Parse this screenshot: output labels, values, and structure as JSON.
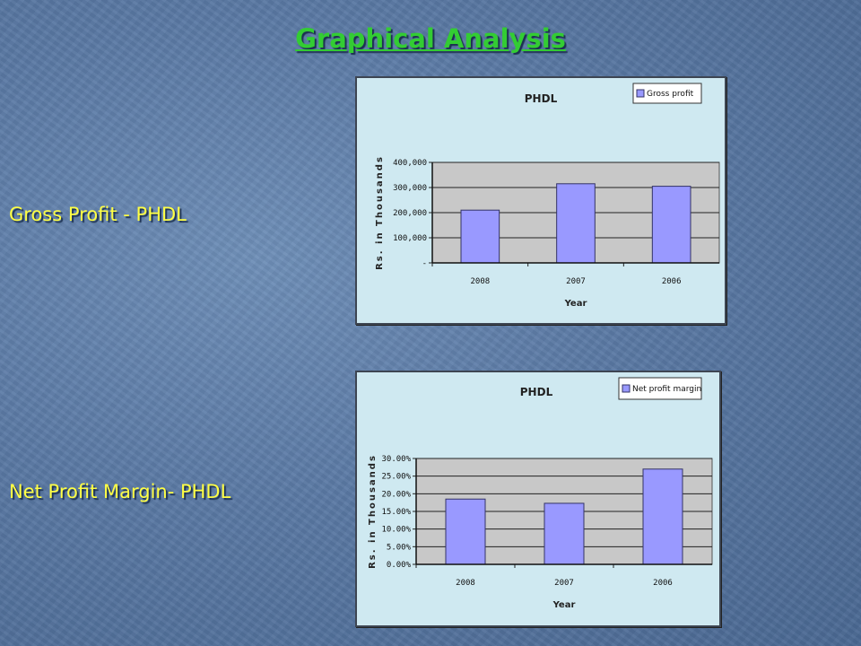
{
  "slide": {
    "title": "Graphical Analysis",
    "label_gross": "Gross Profit - PHDL",
    "label_net": "Net Profit Margin- PHDL"
  },
  "colors": {
    "title": "#33cc33",
    "label": "#ffff44",
    "bar": "#9999ff",
    "chart_bg": "#cfe9f1",
    "plot_bg": "#c8c8c8"
  },
  "chart_data": [
    {
      "type": "bar",
      "title": "PHDL",
      "categories": [
        "2008",
        "2007",
        "2006"
      ],
      "series": [
        {
          "name": "Gross profit",
          "values": [
            210000,
            315000,
            305000
          ]
        }
      ],
      "xlabel": "Year",
      "ylabel": "Rs. in Thousands",
      "ylim": [
        0,
        400000
      ],
      "yticks": [
        "-",
        "100,000",
        "200,000",
        "300,000",
        "400,000"
      ],
      "grid": true,
      "legend": "top-right"
    },
    {
      "type": "bar",
      "title": "PHDL",
      "categories": [
        "2008",
        "2007",
        "2006"
      ],
      "series": [
        {
          "name": "Net profit margin",
          "values": [
            18.5,
            17.3,
            27.0
          ]
        }
      ],
      "xlabel": "Year",
      "ylabel": "Rs. in Thousands",
      "ylim": [
        0,
        30
      ],
      "yticks": [
        "0.00%",
        "5.00%",
        "10.00%",
        "15.00%",
        "20.00%",
        "25.00%",
        "30.00%"
      ],
      "grid": true,
      "legend": "top-right"
    }
  ]
}
